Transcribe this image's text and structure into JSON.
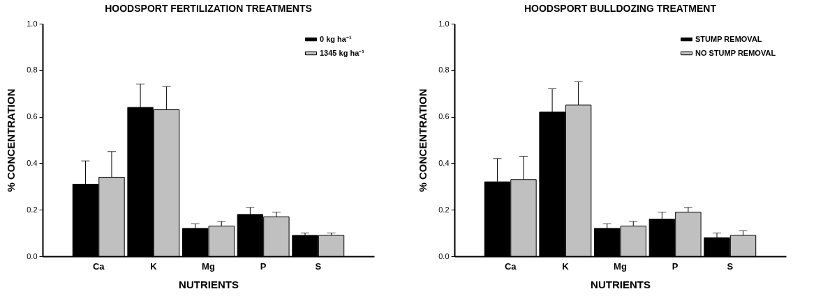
{
  "chart_data": [
    {
      "type": "bar",
      "title": "HOODSPORT FERTILIZATION TREATMENTS",
      "xlabel": "NUTRIENTS",
      "ylabel": "% CONCENTRATION",
      "categories": [
        "Ca",
        "K",
        "Mg",
        "P",
        "S"
      ],
      "series": [
        {
          "name": "0 kg ha⁻¹",
          "color": "#000000",
          "values": [
            0.31,
            0.64,
            0.12,
            0.18,
            0.09
          ],
          "errors": [
            [
              0.31,
              0.41
            ],
            [
              0.64,
              0.74
            ],
            [
              0.12,
              0.14
            ],
            [
              0.18,
              0.21
            ],
            [
              0.09,
              0.1
            ]
          ]
        },
        {
          "name": "1345 kg ha⁻¹",
          "color": "#c0c0c0",
          "values": [
            0.34,
            0.63,
            0.13,
            0.17,
            0.09
          ],
          "errors": [
            [
              0.34,
              0.45
            ],
            [
              0.63,
              0.73
            ],
            [
              0.13,
              0.15
            ],
            [
              0.17,
              0.19
            ],
            [
              0.09,
              0.1
            ]
          ]
        }
      ],
      "ylim": [
        0,
        1
      ],
      "yticks": [
        {
          "value": 0,
          "label": "0.0"
        },
        {
          "value": 0.2,
          "label": "0.2"
        },
        {
          "value": 0.4,
          "label": "0.4"
        },
        {
          "value": 0.6,
          "label": "0.6"
        },
        {
          "value": 0.8,
          "label": "0.8"
        },
        {
          "value": 1,
          "label": "1.0"
        }
      ],
      "legend": "top right"
    },
    {
      "type": "bar",
      "title": "HOODSPORT BULLDOZING TREATMENT",
      "xlabel": "NUTRIENTS",
      "ylabel": "% CONCENTRATION",
      "categories": [
        "Ca",
        "K",
        "Mg",
        "P",
        "S"
      ],
      "series": [
        {
          "name": "STUMP REMOVAL",
          "color": "#000000",
          "values": [
            0.32,
            0.62,
            0.12,
            0.16,
            0.08
          ],
          "errors": [
            [
              0.32,
              0.42
            ],
            [
              0.62,
              0.72
            ],
            [
              0.12,
              0.14
            ],
            [
              0.16,
              0.19
            ],
            [
              0.08,
              0.1
            ]
          ]
        },
        {
          "name": "NO STUMP REMOVAL",
          "color": "#c0c0c0",
          "values": [
            0.33,
            0.65,
            0.13,
            0.19,
            0.09
          ],
          "errors": [
            [
              0.33,
              0.43
            ],
            [
              0.65,
              0.75
            ],
            [
              0.13,
              0.15
            ],
            [
              0.19,
              0.21
            ],
            [
              0.09,
              0.11
            ]
          ]
        }
      ],
      "ylim": [
        0,
        1
      ],
      "yticks": [
        {
          "value": 0,
          "label": "0.0"
        },
        {
          "value": 0.2,
          "label": "0.2"
        },
        {
          "value": 0.4,
          "label": "0.4"
        },
        {
          "value": 0.6,
          "label": "0.6"
        },
        {
          "value": 0.8,
          "label": "0.8"
        },
        {
          "value": 1,
          "label": "1.0"
        }
      ],
      "legend": "top right"
    }
  ]
}
